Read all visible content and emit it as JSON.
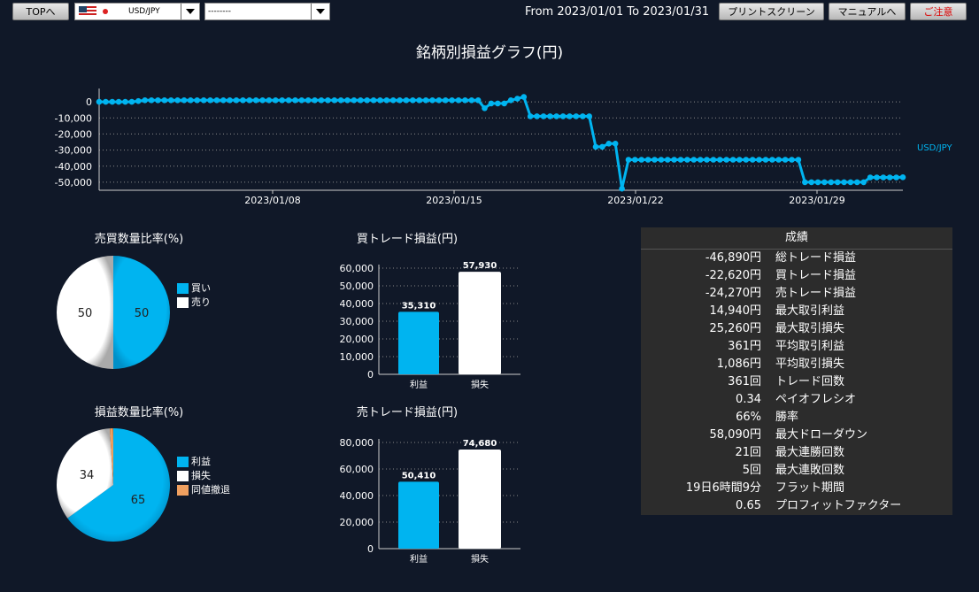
{
  "toolbar": {
    "top_label": "TOPへ",
    "pair_value": "USD/JPY",
    "second_value": "--------",
    "date_range": "From 2023/01/01 To 2023/01/31",
    "print_label": "プリントスクリーン",
    "manual_label": "マニュアルへ",
    "contract_label": "ご注意"
  },
  "colors": {
    "accent": "#00b4f0",
    "white": "#ffffff",
    "orange": "#f0a060",
    "bg": "#101828"
  },
  "line_chart": {
    "title": "銘柄別損益グラフ(円)",
    "series_name": "USD/JPY",
    "ytick_labels": [
      "0",
      "-10,000",
      "-20,000",
      "-30,000",
      "-40,000",
      "-50,000"
    ],
    "xtick_labels": [
      "2023/01/08",
      "2023/01/15",
      "2023/01/22",
      "2023/01/29"
    ]
  },
  "pie1": {
    "title": "売買数量比率(%)",
    "legend": [
      "買い",
      "売り"
    ],
    "labels": [
      "50",
      "50"
    ]
  },
  "pie2": {
    "title": "損益数量比率(%)",
    "legend": [
      "利益",
      "損失",
      "同値撤退"
    ],
    "labels": [
      "65",
      "34"
    ]
  },
  "bar1": {
    "title": "買トレード損益(円)",
    "ytick_labels": [
      "60,000",
      "50,000",
      "40,000",
      "30,000",
      "20,000",
      "10,000",
      "0"
    ],
    "categories": [
      "利益",
      "損失"
    ],
    "value_labels": [
      "35,310",
      "57,930"
    ]
  },
  "bar2": {
    "title": "売トレード損益(円)",
    "ytick_labels": [
      "80,000",
      "60,000",
      "40,000",
      "20,000",
      "0"
    ],
    "categories": [
      "利益",
      "損失"
    ],
    "value_labels": [
      "50,410",
      "74,680"
    ]
  },
  "stats": {
    "header": "成績",
    "rows": [
      {
        "value": "-46,890円",
        "label": "総トレード損益"
      },
      {
        "value": "-22,620円",
        "label": "買トレード損益"
      },
      {
        "value": "-24,270円",
        "label": "売トレード損益"
      },
      {
        "value": "14,940円",
        "label": "最大取引利益"
      },
      {
        "value": "25,260円",
        "label": "最大取引損失"
      },
      {
        "value": "361円",
        "label": "平均取引利益"
      },
      {
        "value": "1,086円",
        "label": "平均取引損失"
      },
      {
        "value": "361回",
        "label": "トレード回数"
      },
      {
        "value": "0.34",
        "label": "ペイオフレシオ"
      },
      {
        "value": "66%",
        "label": "勝率"
      },
      {
        "value": "58,090円",
        "label": "最大ドローダウン"
      },
      {
        "value": "21回",
        "label": "最大連勝回数"
      },
      {
        "value": "5回",
        "label": "最大連敗回数"
      },
      {
        "value": "19日6時間9分",
        "label": "フラット期間"
      },
      {
        "value": "0.65",
        "label": "プロフィットファクター"
      }
    ]
  },
  "chart_data": [
    {
      "type": "line",
      "title": "銘柄別損益グラフ(円)",
      "series": [
        {
          "name": "USD/JPY",
          "values": [
            0,
            0,
            0,
            0,
            0,
            0,
            500,
            1000,
            1000,
            1000,
            1000,
            1000,
            1000,
            1000,
            1000,
            1000,
            1000,
            1000,
            1000,
            1000,
            1000,
            1000,
            1000,
            1000,
            1000,
            1000,
            1000,
            1000,
            1000,
            1000,
            1000,
            1000,
            1000,
            1000,
            1000,
            1000,
            1000,
            1000,
            1000,
            1000,
            1000,
            1000,
            1000,
            1000,
            1000,
            1000,
            1000,
            1000,
            1000,
            1000,
            1000,
            1000,
            1000,
            1000,
            1000,
            1000,
            1000,
            1000,
            1000,
            -4000,
            -1000,
            -1000,
            -1000,
            1000,
            2000,
            3000,
            -9000,
            -9000,
            -9000,
            -9000,
            -9000,
            -9000,
            -9000,
            -9000,
            -9000,
            -9000,
            -28000,
            -28000,
            -26000,
            -26000,
            -54000,
            -36000,
            -36000,
            -36000,
            -36000,
            -36000,
            -36000,
            -36000,
            -36000,
            -36000,
            -36000,
            -36000,
            -36000,
            -36000,
            -36000,
            -36000,
            -36000,
            -36000,
            -36000,
            -36000,
            -36000,
            -36000,
            -36000,
            -36000,
            -36000,
            -36000,
            -36000,
            -36000,
            -50000,
            -50000,
            -50000,
            -50000,
            -50000,
            -50000,
            -50000,
            -50000,
            -50000,
            -50000,
            -47000,
            -47000,
            -47000,
            -47000,
            -47000,
            -46890
          ]
        }
      ],
      "xtick_labels": [
        "2023/01/08",
        "2023/01/15",
        "2023/01/22",
        "2023/01/29"
      ],
      "ylim": [
        -55000,
        5000
      ]
    },
    {
      "type": "pie",
      "title": "売買数量比率(%)",
      "categories": [
        "買い",
        "売り"
      ],
      "values": [
        50,
        50
      ]
    },
    {
      "type": "pie",
      "title": "損益数量比率(%)",
      "categories": [
        "利益",
        "損失",
        "同値撤退"
      ],
      "values": [
        65,
        34,
        1
      ]
    },
    {
      "type": "bar",
      "title": "買トレード損益(円)",
      "categories": [
        "利益",
        "損失"
      ],
      "values": [
        35310,
        57930
      ],
      "ylim": [
        0,
        60000
      ]
    },
    {
      "type": "bar",
      "title": "売トレード損益(円)",
      "categories": [
        "利益",
        "損失"
      ],
      "values": [
        50410,
        74680
      ],
      "ylim": [
        0,
        80000
      ]
    }
  ]
}
